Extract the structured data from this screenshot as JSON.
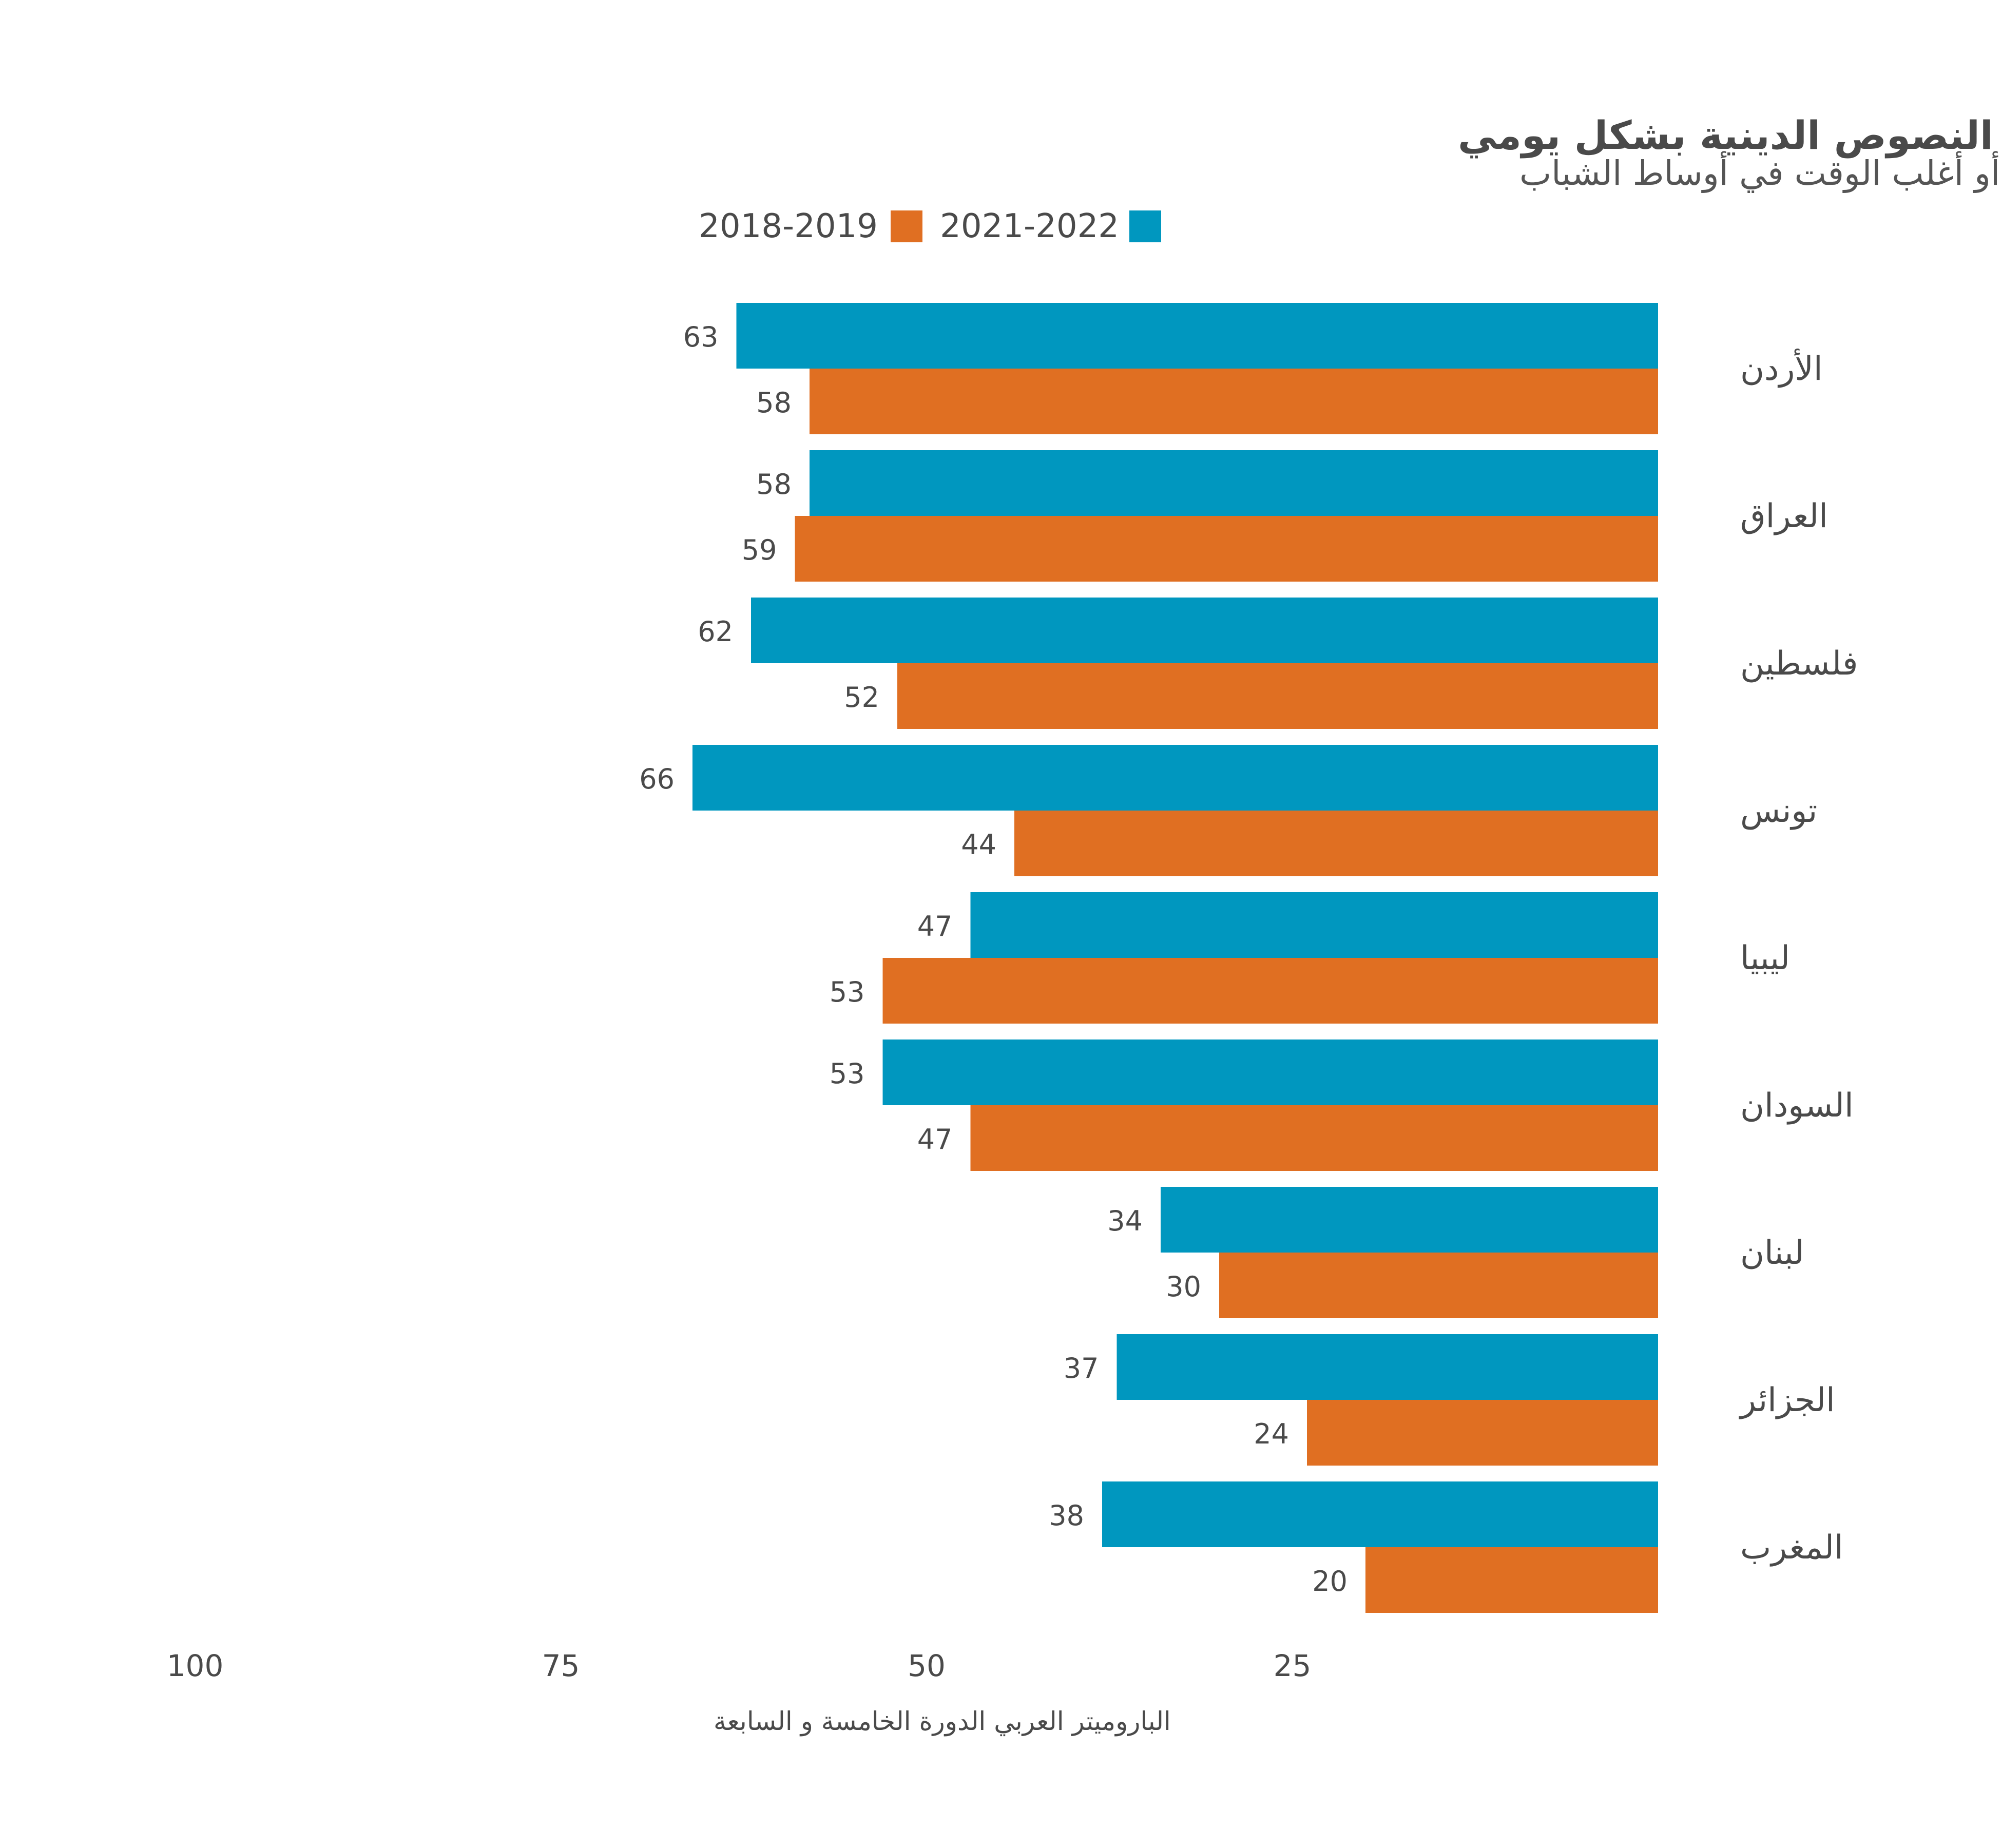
{
  "chart_data": {
    "type": "bar",
    "orientation": "horizontal",
    "title": "الاطلاع أو الاستماع إلى النصوص الدينية بشكل يومي",
    "subtitle": "من يقولون بأنهم يفعلون هذا دائماً أو أغلب الوقت في أوساط الشباب",
    "source": "الباروميتر العربي الدورة الخامسة و السابعة",
    "categories": [
      "الأردن",
      "العراق",
      "فلسطين",
      "تونس",
      "ليبيا",
      "السودان",
      "لبنان",
      "الجزائر",
      "المغرب"
    ],
    "series": [
      {
        "name": "2021-2022",
        "color": "#0097bf",
        "values": [
          63,
          58,
          62,
          66,
          47,
          53,
          34,
          37,
          38
        ]
      },
      {
        "name": "2018-2019",
        "color": "#e06f22",
        "values": [
          58,
          59,
          52,
          44,
          53,
          47,
          30,
          24,
          20
        ]
      }
    ],
    "xlim": [
      0,
      100
    ],
    "x_reversed": true,
    "xticks": [
      100,
      75,
      50,
      25
    ],
    "grid": false,
    "legend_position": "top"
  }
}
